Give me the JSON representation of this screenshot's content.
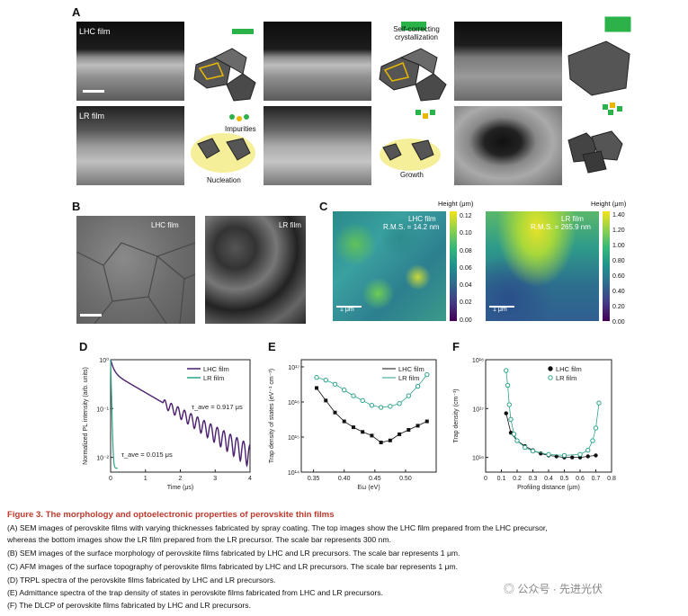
{
  "panels": {
    "A": "A",
    "B": "B",
    "C": "C",
    "D": "D",
    "E": "E",
    "F": "F"
  },
  "panel_a": {
    "lhc_film": "LHC film",
    "lr_film": "LR film",
    "self_correcting": "Self-correcting",
    "crystallization": "crystallization",
    "impurities": "Impurities",
    "nucleation": "Nucleation",
    "growth": "Growth"
  },
  "panel_b": {
    "lhc_film": "LHC film",
    "lr_film": "LR film"
  },
  "panel_c": {
    "lhc": {
      "label": "LHC film",
      "rms": "R.M.S. = 14.2 nm",
      "scale": "1 μm",
      "cb_title": "Height (μm)",
      "cb_ticks": [
        "0.12",
        "0.10",
        "0.08",
        "0.06",
        "0.04",
        "0.02",
        "0.00"
      ]
    },
    "lr": {
      "label": "LR film",
      "rms": "R.M.S. = 265.9 nm",
      "scale": "1 μm",
      "cb_title": "Height (μm)",
      "cb_ticks": [
        "1.40",
        "1.20",
        "1.00",
        "0.80",
        "0.60",
        "0.40",
        "0.20",
        "0.00"
      ]
    }
  },
  "chart_data": [
    {
      "panel": "D",
      "type": "line",
      "xlabel": "Time (μs)",
      "ylabel": "Normalized PL intensity (arb. units)",
      "xlim": [
        0,
        4
      ],
      "ylim": [
        0.005,
        1
      ],
      "log_y": true,
      "x_ticks": [
        "0",
        "1",
        "2",
        "3",
        "4"
      ],
      "y_ticks": [
        "10⁰",
        "10⁻¹",
        "10⁻²"
      ],
      "series": [
        {
          "name": "LHC film",
          "color": "#4b1e6e",
          "tau": 0.917
        },
        {
          "name": "LR film",
          "color": "#2aa38a",
          "tau": 0.015
        }
      ],
      "annotations": [
        "τ_ave = 0.917 μs",
        "τ_ave = 0.015 μs"
      ]
    },
    {
      "panel": "E",
      "type": "line",
      "xlabel": "Eω (eV)",
      "ylabel": "Trap density of states (eV⁻¹ cm⁻³)",
      "xlim": [
        0.33,
        0.55
      ],
      "log_y": true,
      "x_ticks": [
        "0.35",
        "0.40",
        "0.45",
        "0.50"
      ],
      "y_ticks": [
        "10¹⁷",
        "10¹⁶",
        "10¹⁵",
        "10¹⁴"
      ],
      "series": [
        {
          "name": "LHC film",
          "color": "#111111",
          "x": [
            0.355,
            0.37,
            0.385,
            0.4,
            0.415,
            0.43,
            0.445,
            0.46,
            0.475,
            0.49,
            0.505,
            0.52,
            0.535
          ],
          "y": [
            2.5e+16,
            1.1e+16,
            5000000000000000.0,
            2800000000000000.0,
            1900000000000000.0,
            1400000000000000.0,
            1100000000000000.0,
            700000000000000.0,
            800000000000000.0,
            1200000000000000.0,
            1600000000000000.0,
            2100000000000000.0,
            2800000000000000.0
          ]
        },
        {
          "name": "LR film",
          "color": "#2aa38a",
          "x": [
            0.355,
            0.37,
            0.385,
            0.4,
            0.415,
            0.43,
            0.445,
            0.46,
            0.475,
            0.49,
            0.505,
            0.52,
            0.535
          ],
          "y": [
            5e+16,
            4.2e+16,
            3.2e+16,
            2.2e+16,
            1.5e+16,
            1.1e+16,
            8000000000000000.0,
            7000000000000000.0,
            7500000000000000.0,
            9000000000000000.0,
            1.5e+16,
            2.8e+16,
            6e+16
          ]
        }
      ]
    },
    {
      "panel": "F",
      "type": "line",
      "xlabel": "Profiling distance (μm)",
      "ylabel": "Trap density (cm⁻³)",
      "xlim": [
        0,
        0.8
      ],
      "ylim": [
        5000000000000000.0,
        1e+18
      ],
      "log_y": true,
      "x_ticks": [
        "0",
        "0.1",
        "0.2",
        "0.3",
        "0.4",
        "0.5",
        "0.6",
        "0.7",
        "0.8"
      ],
      "y_ticks": [
        "10¹⁸",
        "10¹⁷",
        "10¹⁶",
        "10¹⁵"
      ],
      "series": [
        {
          "name": "LHC film",
          "color": "#111111",
          "x": [
            0.13,
            0.16,
            0.2,
            0.25,
            0.3,
            0.35,
            0.4,
            0.45,
            0.5,
            0.55,
            0.6,
            0.65,
            0.7
          ],
          "y": [
            8e+16,
            3.2e+16,
            2.2e+16,
            1.7e+16,
            1.4e+16,
            1.2e+16,
            1.1e+16,
            1.05e+16,
            1e+16,
            1e+16,
            1e+16,
            1.05e+16,
            1.1e+16
          ]
        },
        {
          "name": "LR film",
          "color": "#2aa38a",
          "x": [
            0.13,
            0.14,
            0.15,
            0.16,
            0.18,
            0.2,
            0.25,
            0.3,
            0.4,
            0.5,
            0.6,
            0.65,
            0.68,
            0.7,
            0.72
          ],
          "y": [
            6e+17,
            3e+17,
            1.2e+17,
            6e+16,
            3e+16,
            2.2e+16,
            1.6e+16,
            1.35e+16,
            1.15e+16,
            1.1e+16,
            1.15e+16,
            1.4e+16,
            2.2e+16,
            4e+16,
            1.3e+17
          ]
        }
      ]
    }
  ],
  "caption": {
    "title": "Figure 3. The morphology and optoelectronic properties of perovskite thin films",
    "lines": [
      "(A) SEM images of perovskite films with varying thicknesses fabricated by spray coating. The top images show the LHC film prepared from the LHC precursor,",
      "whereas the bottom images show the LR film prepared from the LR precursor. The scale bar represents 300 nm.",
      "(B) SEM images of the surface morphology of perovskite films fabricated by LHC and LR precursors. The scale bar represents 1 μm.",
      "(C) AFM images of the surface topography of perovskite films fabricated by LHC and LR precursors. The scale bar represents 1 μm.",
      "(D) TRPL spectra of the perovskite films fabricated by LHC and LR precursors.",
      "(E) Admittance spectra of the trap density of states in perovskite films fabricated from LHC and LR precursors.",
      "(F) The DLCP of perovskite films fabricated by LHC and LR precursors."
    ]
  },
  "watermark": "公众号 · 先进光伏"
}
